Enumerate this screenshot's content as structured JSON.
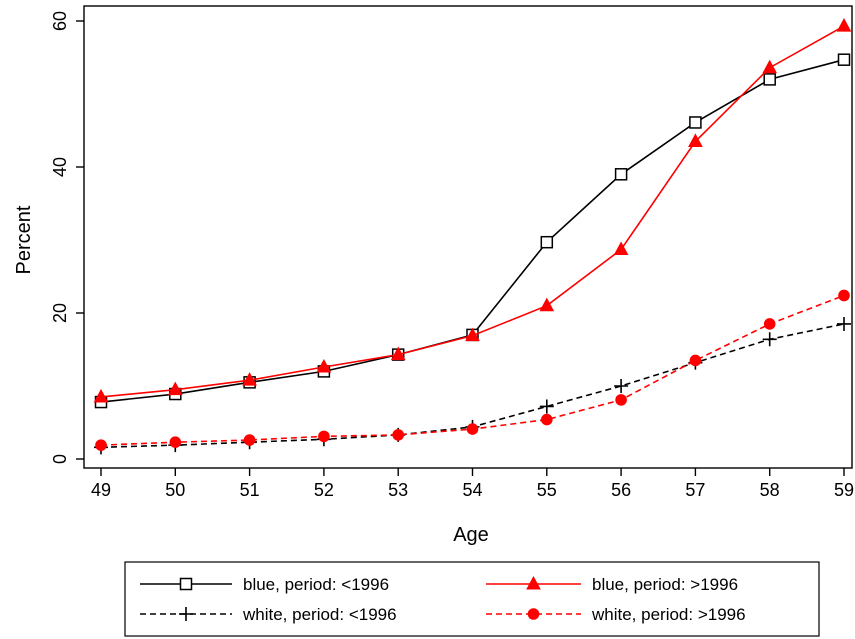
{
  "chart_data": {
    "type": "line",
    "title": "",
    "xlabel": "Age",
    "ylabel": "Percent",
    "x": [
      49,
      50,
      51,
      52,
      53,
      54,
      55,
      56,
      57,
      58,
      59
    ],
    "xlim": [
      49,
      59
    ],
    "ylim": [
      0,
      60
    ],
    "x_ticks": [
      49,
      50,
      51,
      52,
      53,
      54,
      55,
      56,
      57,
      58,
      59
    ],
    "y_ticks": [
      0,
      20,
      40,
      60
    ],
    "grid": false,
    "legend_position": "bottom",
    "series": [
      {
        "name": "blue, period: <1996",
        "color": "#000000",
        "line_style": "solid",
        "marker": "hollow-square",
        "values": [
          7.8,
          8.9,
          10.5,
          12.0,
          14.3,
          17.0,
          29.7,
          39.0,
          46.1,
          52.0,
          54.7
        ]
      },
      {
        "name": "blue, period: >1996",
        "color": "#ff0000",
        "line_style": "solid",
        "marker": "filled-triangle",
        "values": [
          8.5,
          9.5,
          10.8,
          12.6,
          14.3,
          16.9,
          21.0,
          28.7,
          43.5,
          53.6,
          59.3
        ]
      },
      {
        "name": "white, period: <1996",
        "color": "#000000",
        "line_style": "dashed",
        "marker": "plus",
        "values": [
          1.6,
          1.9,
          2.3,
          2.7,
          3.3,
          4.4,
          7.2,
          10.0,
          13.2,
          16.4,
          18.5
        ]
      },
      {
        "name": "white, period: >1996",
        "color": "#ff0000",
        "line_style": "dashed",
        "marker": "filled-circle",
        "values": [
          1.9,
          2.3,
          2.6,
          3.1,
          3.3,
          4.1,
          5.4,
          8.1,
          13.5,
          18.5,
          22.4
        ]
      }
    ]
  }
}
